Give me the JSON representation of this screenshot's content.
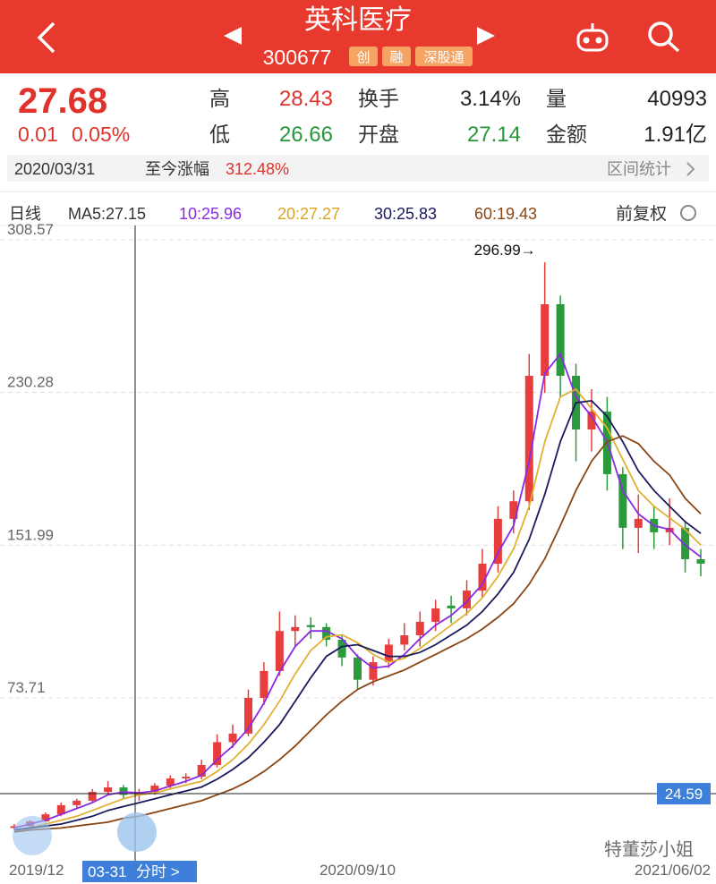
{
  "header": {
    "title": "英科医疗",
    "code": "300677",
    "badges": [
      "创",
      "融",
      "深股通"
    ]
  },
  "quote": {
    "price": "27.68",
    "change": "0.01",
    "change_pct": "0.05%",
    "stats": [
      {
        "label": "高",
        "value": "28.43",
        "color": "#e0322b"
      },
      {
        "label": "换手",
        "value": "3.14%",
        "color": "#222222"
      },
      {
        "label": "量",
        "value": "40993",
        "color": "#222222"
      },
      {
        "label": "低",
        "value": "26.66",
        "color": "#27983a"
      },
      {
        "label": "开盘",
        "value": "27.14",
        "color": "#27983a"
      },
      {
        "label": "金额",
        "value": "1.91亿",
        "color": "#222222"
      }
    ]
  },
  "range_bar": {
    "date": "2020/03/31",
    "label": "至今涨幅",
    "value": "312.48%",
    "link": "区间统计"
  },
  "ma_bar": {
    "period": "日线",
    "items": [
      {
        "text": "MA5:27.15",
        "color": "#333333"
      },
      {
        "text": "10:25.96",
        "color": "#8a2be2"
      },
      {
        "text": "20:27.27",
        "color": "#d9a520"
      },
      {
        "text": "30:25.83",
        "color": "#1a1a5e"
      },
      {
        "text": "60:19.43",
        "color": "#8b4513"
      }
    ],
    "adjust": "前复权"
  },
  "chart_data": {
    "type": "candlestick",
    "categories": [
      "2019/12",
      null,
      null,
      null,
      null,
      null,
      null,
      null,
      null,
      null,
      null,
      null,
      null,
      null,
      null,
      null,
      null,
      null,
      null,
      null,
      null,
      null,
      "2020/09/10",
      null,
      null,
      null,
      null,
      null,
      null,
      null,
      null,
      null,
      null,
      null,
      null,
      null,
      null,
      null,
      null,
      null,
      null,
      null,
      null,
      null,
      "2021/06/02"
    ],
    "open": [
      7.0,
      7.9,
      10.4,
      14,
      18.7,
      21,
      25.5,
      27.8,
      24,
      25.5,
      28.7,
      32.4,
      33.3,
      39.3,
      51,
      55.4,
      73.7,
      87.5,
      108,
      111,
      110,
      103.5,
      94.4,
      83,
      92,
      101,
      105.8,
      112.7,
      121,
      119.6,
      128.7,
      142.5,
      165.5,
      174.5,
      238.8,
      275.5,
      238.8,
      211.3,
      220.5,
      188.4,
      160.9,
      165.5,
      158.6,
      160.9,
      144.8
    ],
    "high": [
      9,
      11,
      15,
      20,
      22,
      27,
      31,
      29,
      27,
      30,
      34,
      35,
      42,
      55,
      60,
      78,
      92,
      118,
      116,
      115,
      112,
      106,
      96,
      95,
      104,
      112,
      118,
      124,
      126,
      134,
      150,
      172,
      180,
      250,
      296.99,
      280,
      245,
      232,
      228,
      192,
      178,
      172,
      176,
      164,
      150
    ],
    "low": [
      6,
      7.5,
      10,
      13,
      17,
      20,
      24,
      22,
      21,
      24,
      27,
      30,
      32,
      38,
      48,
      54,
      70,
      85,
      100,
      104,
      100,
      90,
      78,
      80,
      89,
      98,
      100,
      108,
      112,
      116,
      125,
      138,
      158,
      170,
      230,
      228,
      195,
      200,
      180,
      150,
      148,
      150,
      152,
      138,
      136
    ],
    "close": [
      7.9,
      10.4,
      14,
      18.7,
      21,
      25.5,
      27.8,
      24,
      25.5,
      28.7,
      32.4,
      33.3,
      39.3,
      51,
      55.4,
      73.7,
      87.5,
      108,
      110,
      110,
      103.5,
      94.4,
      83,
      92,
      101,
      105.8,
      112.7,
      119.6,
      119.6,
      128.7,
      142.5,
      165.5,
      174.5,
      238.8,
      275.5,
      238.8,
      211.3,
      220.5,
      188.4,
      160.9,
      165.5,
      158.6,
      160.9,
      144.8,
      142.5
    ],
    "up_color": "#e83d3d",
    "down_color": "#2a9a3c",
    "series": [
      {
        "color": "#8a2be2",
        "values": [
          7,
          9,
          11,
          14,
          17,
          20,
          24,
          25.5,
          25,
          26,
          28.5,
          31,
          34,
          42,
          49,
          58,
          71,
          87,
          100,
          108,
          108,
          104,
          95,
          89,
          90,
          96,
          104,
          111,
          116,
          123,
          132,
          148,
          162,
          195,
          240,
          250,
          228,
          218,
          205,
          180,
          168,
          162,
          160,
          152,
          146
        ]
      },
      {
        "color": "#e0b030",
        "values": [
          6,
          7,
          9,
          11,
          13,
          16,
          19,
          22,
          24,
          25,
          27,
          29,
          31,
          36,
          42,
          50,
          60,
          72,
          86,
          98,
          105,
          106,
          102,
          96,
          92,
          94,
          99,
          105,
          111,
          117,
          125,
          136,
          150,
          172,
          205,
          228,
          232,
          222,
          212,
          196,
          180,
          172,
          166,
          160,
          152
        ]
      },
      {
        "color": "#1a1a5e",
        "values": [
          6,
          7,
          8,
          9,
          11,
          13,
          16,
          18,
          20,
          22,
          24,
          26,
          28,
          32,
          37,
          43,
          51,
          60,
          72,
          84,
          95,
          100,
          101,
          98,
          95,
          95,
          97,
          101,
          106,
          111,
          118,
          127,
          138,
          155,
          178,
          205,
          225,
          226,
          218,
          205,
          190,
          180,
          172,
          164,
          158
        ]
      },
      {
        "color": "#8b4513",
        "values": [
          5,
          6,
          6.5,
          7,
          8,
          9,
          10,
          12,
          13,
          15,
          17,
          19,
          21,
          24,
          27,
          31,
          36,
          42,
          49,
          57,
          65,
          72,
          78,
          82,
          85,
          88,
          92,
          96,
          100,
          104,
          109,
          115,
          122,
          132,
          145,
          162,
          180,
          195,
          205,
          208,
          204,
          195,
          188,
          176,
          168
        ]
      }
    ],
    "ylim": [
      2.6,
      314.5
    ],
    "yticks": [
      308.57,
      230.28,
      151.99,
      73.71
    ],
    "grid": true,
    "annotation": "296.99→",
    "crosshair": {
      "value": 24.59,
      "date": "03-31",
      "link": "分时 >"
    },
    "watermark": "特董莎小姐"
  }
}
